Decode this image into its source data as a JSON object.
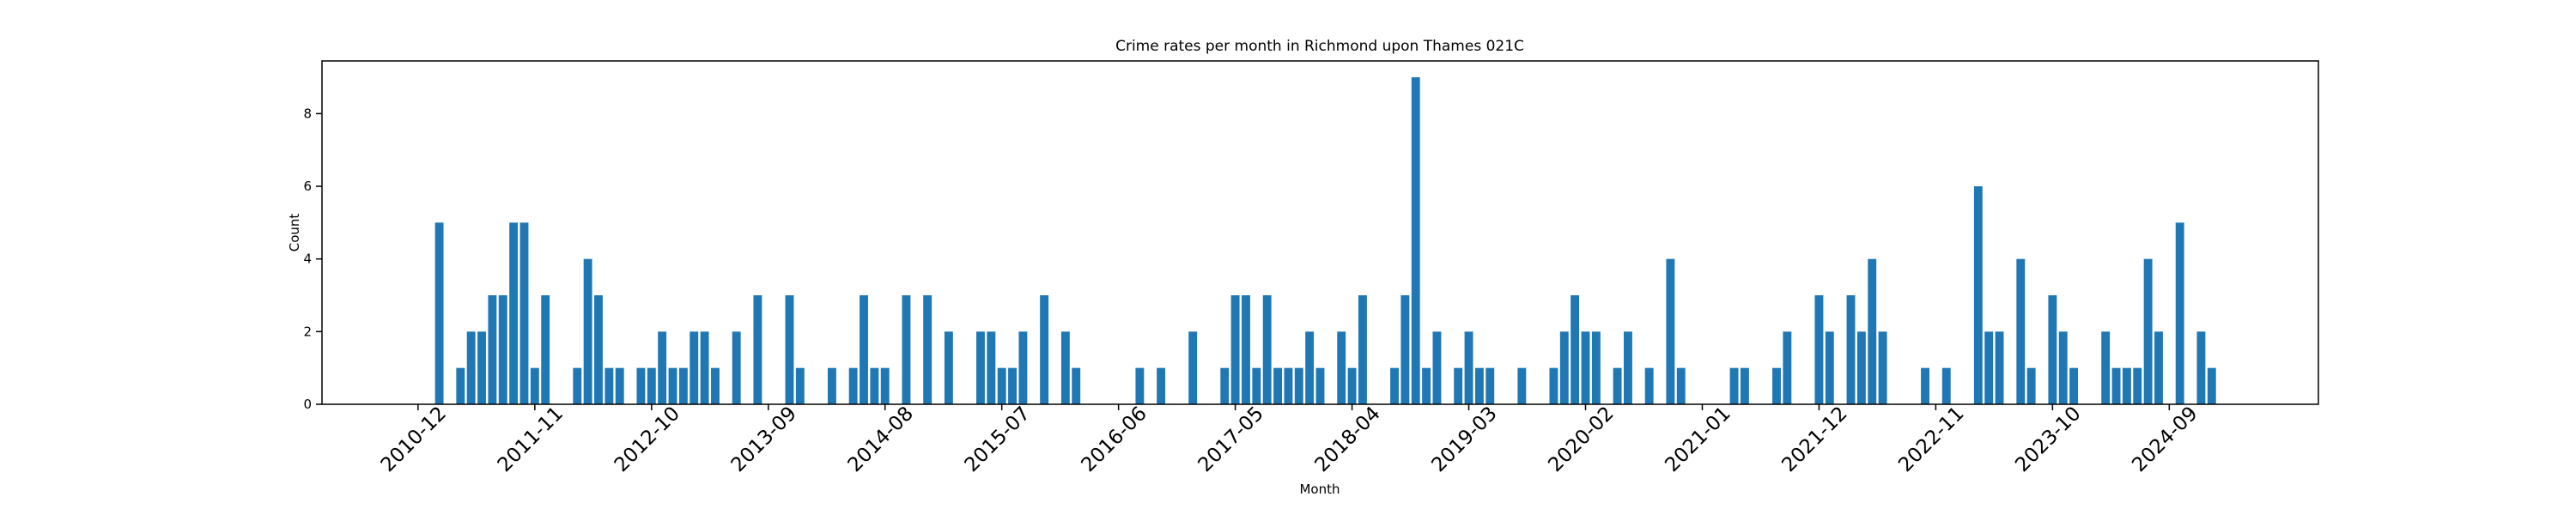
{
  "chart_data": {
    "type": "bar",
    "title": "Crime rates per month in Richmond upon Thames 021C",
    "xlabel": "Month",
    "ylabel": "Count",
    "color": "#1f77b4",
    "categories": [
      "2010-12",
      null,
      null,
      null,
      null,
      null,
      null,
      null,
      null,
      null,
      null,
      "2011-11",
      null,
      null,
      null,
      null,
      null,
      null,
      null,
      null,
      null,
      null,
      "2012-10",
      null,
      null,
      null,
      null,
      null,
      null,
      null,
      null,
      null,
      null,
      "2013-09",
      null,
      null,
      null,
      null,
      null,
      null,
      null,
      null,
      null,
      null,
      "2014-08",
      null,
      null,
      null,
      null,
      null,
      null,
      null,
      null,
      null,
      null,
      "2015-07",
      null,
      null,
      null,
      null,
      null,
      null,
      null,
      null,
      null,
      null,
      "2016-06",
      null,
      null,
      null,
      null,
      null,
      null,
      null,
      null,
      null,
      null,
      "2017-05",
      null,
      null,
      null,
      null,
      null,
      null,
      null,
      null,
      null,
      null,
      "2018-04",
      null,
      null,
      null,
      null,
      null,
      null,
      null,
      null,
      null,
      null,
      "2019-03",
      null,
      null,
      null,
      null,
      null,
      null,
      null,
      null,
      null,
      null,
      "2020-02",
      null,
      null,
      null,
      null,
      null,
      null,
      null,
      null,
      null,
      null,
      "2021-01",
      null,
      null,
      null,
      null,
      null,
      null,
      null,
      null,
      null,
      null,
      "2021-12",
      null,
      null,
      null,
      null,
      null,
      null,
      null,
      null,
      null,
      null,
      "2022-11",
      null,
      null,
      null,
      null,
      null,
      null,
      null,
      null,
      null,
      null,
      "2023-10",
      null,
      null,
      null,
      null,
      null,
      null,
      null,
      null,
      null,
      null,
      "2024-09",
      null,
      null,
      null,
      null,
      null
    ],
    "values": [
      0,
      0,
      5,
      0,
      1,
      2,
      2,
      3,
      3,
      5,
      5,
      1,
      3,
      0,
      0,
      1,
      4,
      3,
      1,
      1,
      0,
      1,
      1,
      2,
      1,
      1,
      2,
      2,
      1,
      0,
      2,
      0,
      3,
      0,
      0,
      3,
      1,
      0,
      0,
      1,
      0,
      1,
      3,
      1,
      1,
      0,
      3,
      0,
      3,
      0,
      2,
      0,
      0,
      2,
      2,
      1,
      1,
      2,
      0,
      3,
      0,
      2,
      1,
      0,
      0,
      0,
      0,
      0,
      1,
      0,
      1,
      0,
      0,
      2,
      0,
      0,
      1,
      3,
      3,
      1,
      3,
      1,
      1,
      1,
      2,
      1,
      0,
      2,
      1,
      3,
      0,
      0,
      1,
      3,
      9,
      1,
      2,
      0,
      1,
      2,
      1,
      1,
      0,
      0,
      1,
      0,
      0,
      1,
      2,
      3,
      2,
      2,
      0,
      1,
      2,
      0,
      1,
      0,
      4,
      1,
      0,
      0,
      0,
      0,
      1,
      1,
      0,
      0,
      1,
      2,
      0,
      0,
      3,
      2,
      0,
      3,
      2,
      4,
      2,
      0,
      0,
      0,
      1,
      0,
      1,
      0,
      0,
      6,
      2,
      2,
      0,
      4,
      1,
      0,
      3,
      2,
      1,
      0,
      0,
      2,
      1,
      1,
      1,
      4,
      2,
      0,
      5,
      0,
      2,
      1,
      0
    ],
    "ylim": [
      0,
      9.45
    ],
    "yticks": [
      0,
      2,
      4,
      6,
      8
    ],
    "grid": false
  }
}
